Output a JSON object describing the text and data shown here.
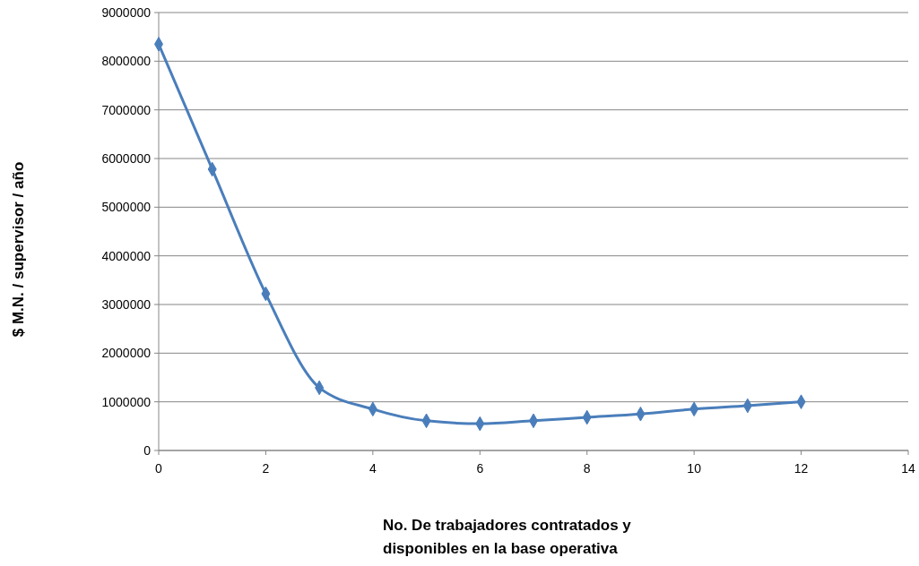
{
  "chart_data": {
    "type": "line",
    "xlabel": "No. De trabajadores contratados y disponibles en la base operativa",
    "ylabel": "$ M.N. /  supervisor / año",
    "x": [
      0,
      1,
      2,
      3,
      4,
      5,
      6,
      7,
      8,
      9,
      10,
      11,
      12
    ],
    "series": [
      {
        "color": "#4a7ebb",
        "values": [
          8350000,
          5780000,
          3220000,
          1290000,
          850000,
          610000,
          550000,
          610000,
          680000,
          750000,
          850000,
          920000,
          1000000
        ]
      }
    ],
    "xlim": [
      0,
      14
    ],
    "xticks": [
      0,
      2,
      4,
      6,
      8,
      10,
      12,
      14
    ],
    "ylim": [
      0,
      9000000
    ],
    "yticks": [
      0,
      1000000,
      2000000,
      3000000,
      4000000,
      5000000,
      6000000,
      7000000,
      8000000,
      9000000
    ],
    "grid": "y",
    "marker": "diamond",
    "line_style": "solid"
  }
}
